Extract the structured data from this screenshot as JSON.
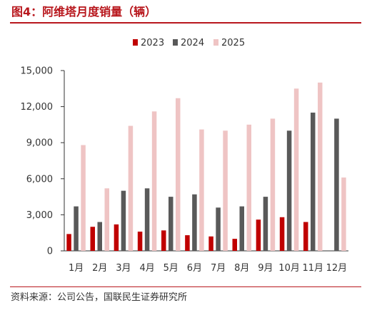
{
  "figure_title": "图4：阿维塔月度销量（辆）",
  "source_note": "资料来源：公司公告，国联民生证券研究所",
  "colors": {
    "title": "#b8171d",
    "axis": "#333333"
  },
  "chart_data": {
    "type": "bar",
    "categories": [
      "1月",
      "2月",
      "3月",
      "4月",
      "5月",
      "6月",
      "7月",
      "8月",
      "9月",
      "10月",
      "11月",
      "12月"
    ],
    "series": [
      {
        "name": "2023",
        "color": "#c00000",
        "values": [
          1400,
          2000,
          2200,
          1600,
          1700,
          1300,
          1200,
          1000,
          2600,
          2800,
          2400,
          null
        ]
      },
      {
        "name": "2024",
        "color": "#595959",
        "values": [
          3700,
          2400,
          5000,
          5200,
          4500,
          4700,
          3600,
          3700,
          4500,
          10000,
          11500,
          11000
        ]
      },
      {
        "name": "2025",
        "color": "#efc4c4",
        "values": [
          8800,
          5200,
          10400,
          11600,
          12700,
          10100,
          10000,
          10500,
          11000,
          13500,
          14000,
          6100
        ]
      }
    ],
    "yticks": [
      "0",
      "3,000",
      "6,000",
      "9,000",
      "12,000",
      "15,000"
    ],
    "ylim": [
      0,
      15000
    ],
    "legend_position": "top-center",
    "grid": false
  }
}
